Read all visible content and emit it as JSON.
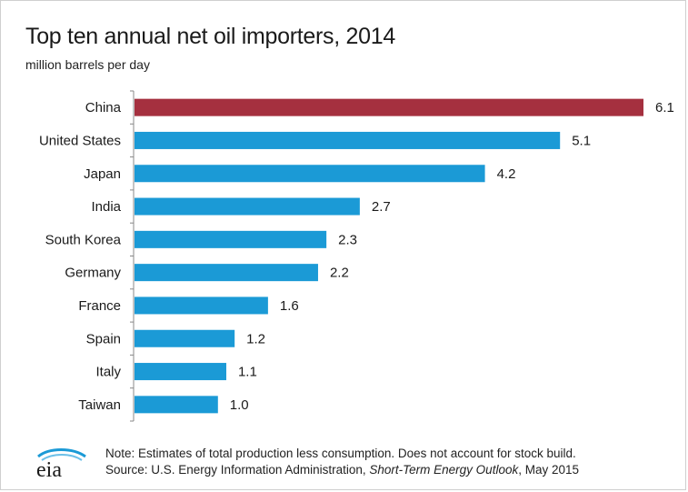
{
  "chart_data": {
    "type": "bar",
    "orientation": "horizontal",
    "title": "Top ten annual  net oil importers, 2014",
    "subtitle": "million barrels  per day",
    "categories": [
      "China",
      "United States",
      "Japan",
      "India",
      "South Korea",
      "Germany",
      "France",
      "Spain",
      "Italy",
      "Taiwan"
    ],
    "values": [
      6.1,
      5.1,
      4.2,
      2.7,
      2.3,
      2.2,
      1.6,
      1.2,
      1.1,
      1.0
    ],
    "value_labels": [
      "6.1",
      "5.1",
      "4.2",
      "2.7",
      "2.3",
      "2.2",
      "1.6",
      "1.2",
      "1.1",
      "1.0"
    ],
    "xlim": [
      0,
      6.1
    ],
    "highlight_index": 0,
    "colors": {
      "highlight": "#a5303f",
      "default": "#1b9ad6",
      "axis": "#888888"
    },
    "grid": false,
    "legend": "none"
  },
  "footer": {
    "logo_text": "eia",
    "note": "Note: Estimates of total production less consumption. Does not account for stock build.",
    "source_prefix": "Source: U.S. Energy Information Administration, ",
    "source_publication": "Short-Term Energy Outlook",
    "source_suffix": ", May 2015"
  }
}
